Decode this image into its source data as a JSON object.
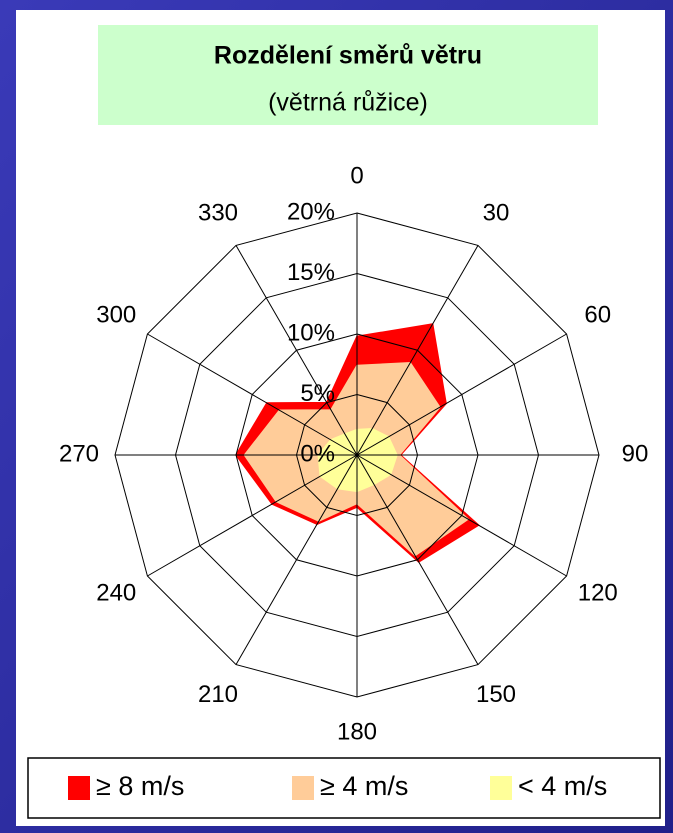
{
  "chart_data": {
    "type": "radar",
    "title": "Rozdělení směrů větru",
    "subtitle": "(větrná růžice)",
    "categories": [
      "0",
      "30",
      "60",
      "90",
      "120",
      "150",
      "180",
      "210",
      "240",
      "270",
      "300",
      "330"
    ],
    "series": [
      {
        "name": "≥ 8 m/s",
        "color": "#ff0000",
        "values": [
          9.8,
          12.5,
          8.5,
          3.6,
          11.6,
          10.2,
          4.3,
          6.6,
          8.1,
          10,
          8.6,
          5
        ]
      },
      {
        "name": "≥ 4 m/s",
        "color": "#ffcc99",
        "values": [
          7.4,
          8.8,
          7.9,
          3.5,
          10.6,
          9.6,
          4,
          6.3,
          7.7,
          9.3,
          7.4,
          4.3
        ]
      },
      {
        "name": "< 4 m/s",
        "color": "#ffff99",
        "values": [
          2.1,
          2.5,
          3,
          3.3,
          3.2,
          2.8,
          3,
          3.2,
          3.5,
          3.2,
          2.5,
          2
        ]
      }
    ],
    "ylim": [
      0,
      20
    ],
    "yticks": [
      {
        "value": 0,
        "label": "0%"
      },
      {
        "value": 5,
        "label": "5%"
      },
      {
        "value": 10,
        "label": "10%"
      },
      {
        "value": 15,
        "label": "15%"
      },
      {
        "value": 20,
        "label": "20%"
      }
    ],
    "grid": true
  }
}
